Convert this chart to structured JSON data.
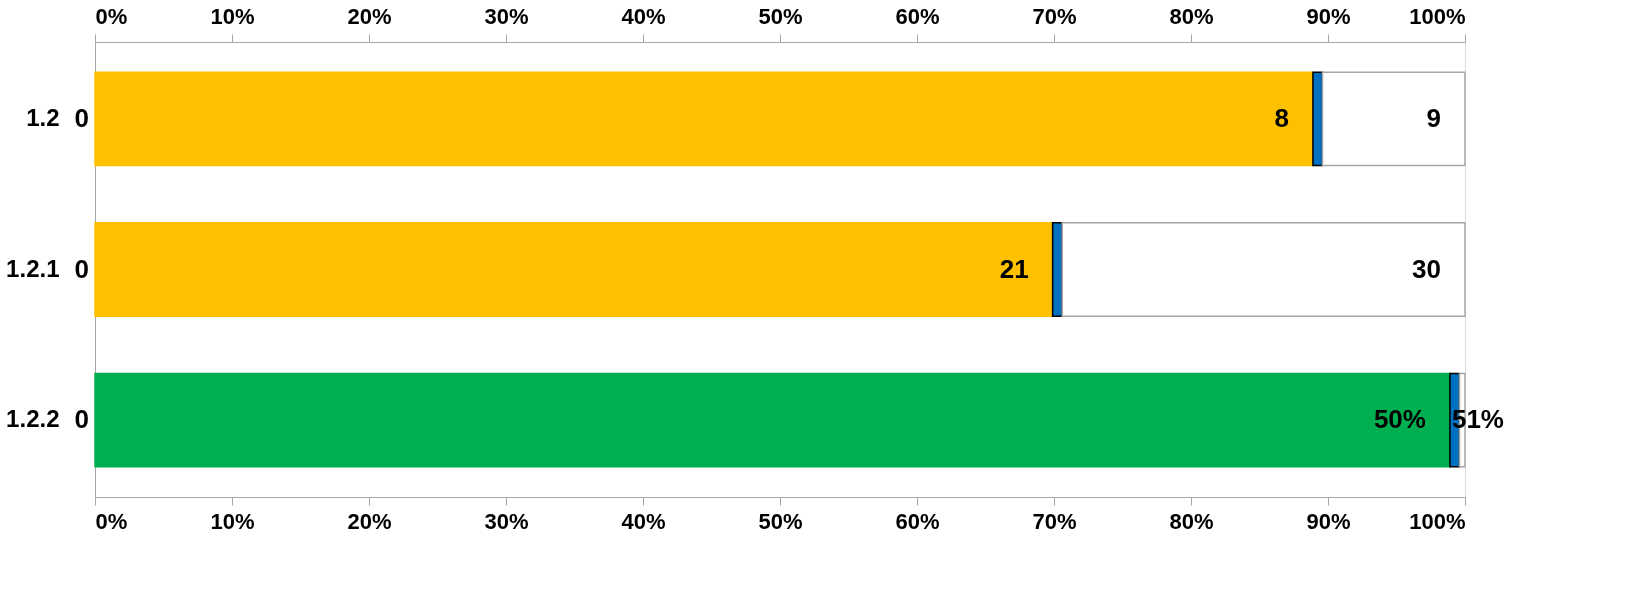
{
  "chart_data": {
    "type": "bar",
    "orientation": "horizontal",
    "stacked": true,
    "categories": [
      "1.2",
      "1.2.1",
      "1.2.2"
    ],
    "series": [
      {
        "colors": [
          "#ffc000",
          "#ffc000",
          "#00b050"
        ],
        "values": [
          88.9,
          69.9,
          98.9
        ]
      },
      {
        "color": "#0070c0",
        "values": [
          0.7,
          0.7,
          0.7
        ]
      },
      {
        "color": "#ffffff",
        "values": [
          10.4,
          29.4,
          0.4
        ]
      }
    ],
    "annotations": [
      {
        "text": "0",
        "x": 0,
        "y": "1.2"
      },
      {
        "text": "0",
        "x": 0,
        "y": "1.2.1"
      },
      {
        "text": "0",
        "x": 0,
        "y": "1.2.2"
      },
      {
        "text": "8",
        "x": 88.9,
        "y": "1.2"
      },
      {
        "text": "9",
        "x": 100,
        "y": "1.2"
      },
      {
        "text": "21",
        "x": 69.9,
        "y": "1.2.1"
      },
      {
        "text": "30",
        "x": 100,
        "y": "1.2.1"
      },
      {
        "text": "50%",
        "x": 98.9,
        "y": "1.2.2"
      },
      {
        "text": "51%",
        "x": 98.9,
        "y": "1.2.2"
      }
    ],
    "xlim": [
      0,
      100
    ],
    "xticks": [
      {
        "value": 0,
        "label": "0%"
      },
      {
        "value": 10,
        "label": "10%"
      },
      {
        "value": 20,
        "label": "20%"
      },
      {
        "value": 30,
        "label": "30%"
      },
      {
        "value": 40,
        "label": "40%"
      },
      {
        "value": 50,
        "label": "50%"
      },
      {
        "value": 60,
        "label": "60%"
      },
      {
        "value": 70,
        "label": "70%"
      },
      {
        "value": 80,
        "label": "80%"
      },
      {
        "value": 90,
        "label": "90%"
      },
      {
        "value": 100,
        "label": "100%"
      }
    ],
    "x2lim": [
      0,
      100
    ],
    "x2ticks": [
      {
        "value": 0,
        "label": "0%"
      },
      {
        "value": 10,
        "label": "10%"
      },
      {
        "value": 20,
        "label": "20%"
      },
      {
        "value": 30,
        "label": "30%"
      },
      {
        "value": 40,
        "label": "40%"
      },
      {
        "value": 50,
        "label": "50%"
      },
      {
        "value": 60,
        "label": "60%"
      },
      {
        "value": 70,
        "label": "70%"
      },
      {
        "value": 80,
        "label": "80%"
      },
      {
        "value": 90,
        "label": "90%"
      },
      {
        "value": 100,
        "label": "100%"
      }
    ]
  }
}
